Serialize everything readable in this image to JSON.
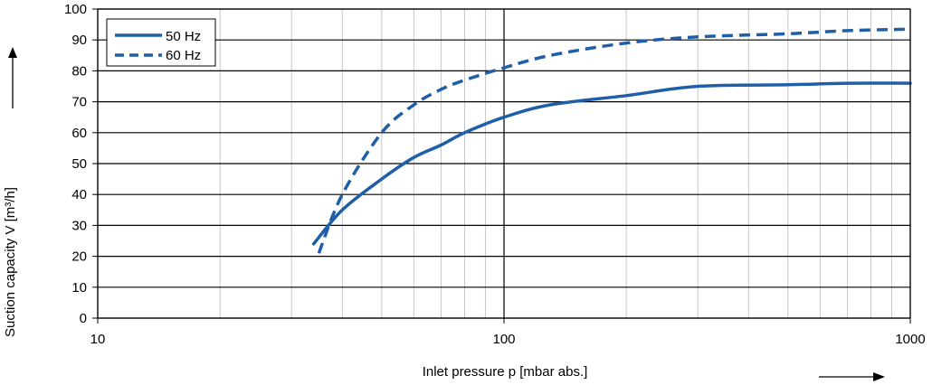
{
  "chart_data": {
    "type": "line",
    "xlabel": "Inlet pressure p [mbar abs.]",
    "ylabel": "Suction capacity V [m³/h]",
    "x_scale": "log",
    "xlim": [
      10,
      1000
    ],
    "ylim": [
      0,
      100
    ],
    "x_ticks": [
      "10",
      "100",
      "1000"
    ],
    "y_ticks": [
      "0",
      "10",
      "20",
      "30",
      "40",
      "50",
      "60",
      "70",
      "80",
      "90",
      "100"
    ],
    "grid": true,
    "legend_position": "top-left",
    "series": [
      {
        "name": "50 Hz",
        "style": "solid",
        "color": "#1f5fa8",
        "x": [
          34,
          40,
          50,
          60,
          70,
          80,
          100,
          130,
          200,
          300,
          500,
          700,
          1000
        ],
        "y": [
          24,
          35,
          45,
          52,
          56,
          60,
          65,
          69,
          72,
          75,
          75.5,
          76,
          76
        ]
      },
      {
        "name": "60 Hz",
        "style": "dashed",
        "color": "#1f5fa8",
        "x": [
          35,
          40,
          50,
          60,
          70,
          80,
          100,
          130,
          200,
          300,
          500,
          700,
          1000
        ],
        "y": [
          21,
          40,
          60,
          69,
          74,
          77,
          81,
          85,
          89,
          91,
          92,
          93,
          93.5
        ]
      }
    ]
  }
}
